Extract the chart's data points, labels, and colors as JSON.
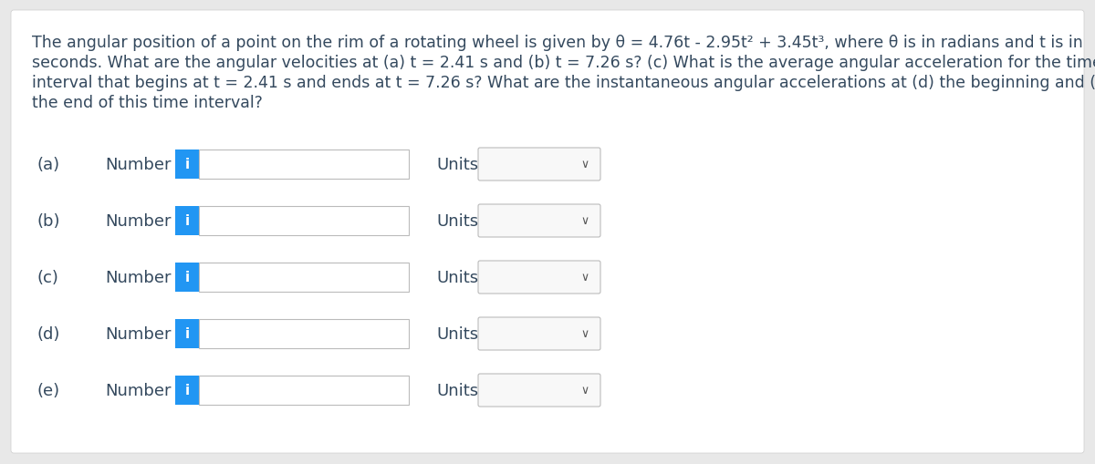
{
  "background_color": "#e8e8e8",
  "panel_color": "#ffffff",
  "title_text_lines": [
    "The angular position of a point on the rim of a rotating wheel is given by θ = 4.76t - 2.95t² + 3.45t³, where θ is in radians and t is in",
    "seconds. What are the angular velocities at (a) t = 2.41 s and (b) t = 7.26 s? (c) What is the average angular acceleration for the time",
    "interval that begins at t = 2.41 s and ends at t = 7.26 s? What are the instantaneous angular accelerations at (d) the beginning and (e)",
    "the end of this time interval?"
  ],
  "rows": [
    {
      "label": "(a)"
    },
    {
      "label": "(b)"
    },
    {
      "label": "(c)"
    },
    {
      "label": "(d)"
    },
    {
      "label": "(e)"
    }
  ],
  "number_text": "Number",
  "units_label": "Units",
  "info_button_color": "#2196F3",
  "info_button_text": "i",
  "info_button_text_color": "#ffffff",
  "input_box_color": "#ffffff",
  "input_box_border": "#bbbbbb",
  "units_box_bg": "#f8f8f8",
  "units_box_border": "#bbbbbb",
  "text_color": "#34495e",
  "bold_text_color": "#2c3e50",
  "title_fontsize": 12.5,
  "label_fontsize": 13,
  "chevron_color": "#555555"
}
